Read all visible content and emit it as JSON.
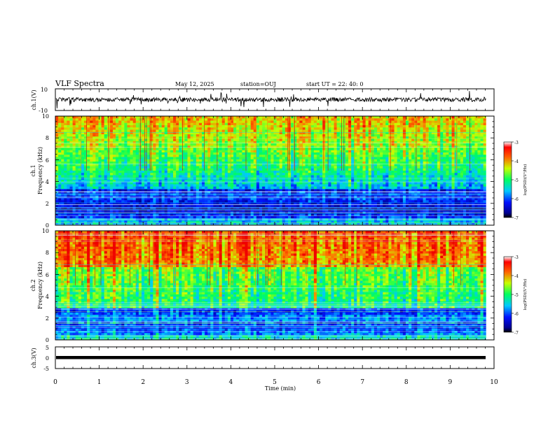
{
  "header": {
    "title": "VLF Spectra",
    "date": "May 12, 2025",
    "station": "station=OUJ",
    "start": "start  UT =   22: 40: 0"
  },
  "chart_data": {
    "type": "heatmap",
    "xlabel": "Time  (min)",
    "xlim": [
      0,
      10
    ],
    "xticks": [
      "0",
      "1",
      "2",
      "3",
      "4",
      "5",
      "6",
      "7",
      "8",
      "9",
      "10"
    ],
    "data_end_min": 9.82,
    "panels": [
      {
        "id": "ch1-waveform",
        "kind": "waveform",
        "ylabel": "ch.1(V)",
        "ylim": [
          -10,
          10
        ],
        "ytick_labels": [
          "10",
          "-10"
        ]
      },
      {
        "id": "ch1-spectrogram",
        "kind": "spectrogram",
        "ylabel_line1": "ch.1",
        "ylabel_line2": "Frequency  (kHz)",
        "ylim": [
          0,
          10
        ],
        "ytick_labels": [
          "0",
          "2",
          "4",
          "6",
          "8",
          "10"
        ],
        "colorbar": {
          "ticks": [
            "-3",
            "-4",
            "-5",
            "-6",
            "-7"
          ],
          "label": "log(PSD)(V²/Hz)"
        }
      },
      {
        "id": "ch2-spectrogram",
        "kind": "spectrogram",
        "ylabel_line1": "ch.2",
        "ylabel_line2": "Frequency  (kHz)",
        "ylim": [
          0,
          10
        ],
        "ytick_labels": [
          "0",
          "2",
          "4",
          "6",
          "8",
          "10"
        ],
        "colorbar": {
          "ticks": [
            "-3",
            "-4",
            "-5",
            "-6",
            "-7"
          ],
          "label": "log(PSD)(V²/Hz)"
        }
      },
      {
        "id": "ch3-waveform",
        "kind": "waveform",
        "ylabel": "ch.3(V)",
        "ylim": [
          -5,
          5
        ],
        "ytick_labels": [
          "5",
          "0",
          "-5"
        ]
      }
    ]
  }
}
